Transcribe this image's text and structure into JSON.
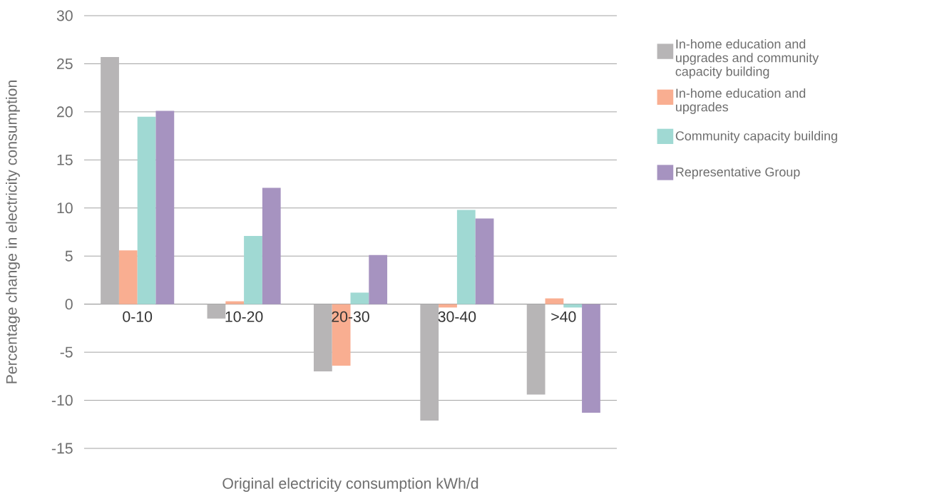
{
  "chart_data": {
    "type": "bar",
    "xlabel": "Original electricity consumption kWh/d",
    "ylabel": "Percentage change in electricity consumption",
    "categories": [
      "0-10",
      "10-20",
      "20-30",
      "30-40",
      ">40"
    ],
    "series": [
      {
        "name": "In-home education and upgrades and community capacity building",
        "color": "#b7b5b6",
        "values": [
          25.7,
          -1.5,
          -7.0,
          -12.1,
          -9.4
        ]
      },
      {
        "name": "In-home education and upgrades",
        "color": "#f9ae91",
        "values": [
          5.6,
          0.3,
          -6.4,
          -0.35,
          0.6
        ]
      },
      {
        "name": "Community capacity building",
        "color": "#a0d9d3",
        "values": [
          19.5,
          7.1,
          1.2,
          9.8,
          -0.35
        ]
      },
      {
        "name": "Representative Group",
        "color": "#a693c0",
        "values": [
          20.1,
          12.1,
          5.1,
          8.9,
          -11.3
        ]
      }
    ],
    "ylim": [
      -15,
      30
    ],
    "yticks": [
      -15,
      -10,
      -5,
      0,
      5,
      10,
      15,
      20,
      25,
      30
    ],
    "grid": "y",
    "legend": "right"
  }
}
